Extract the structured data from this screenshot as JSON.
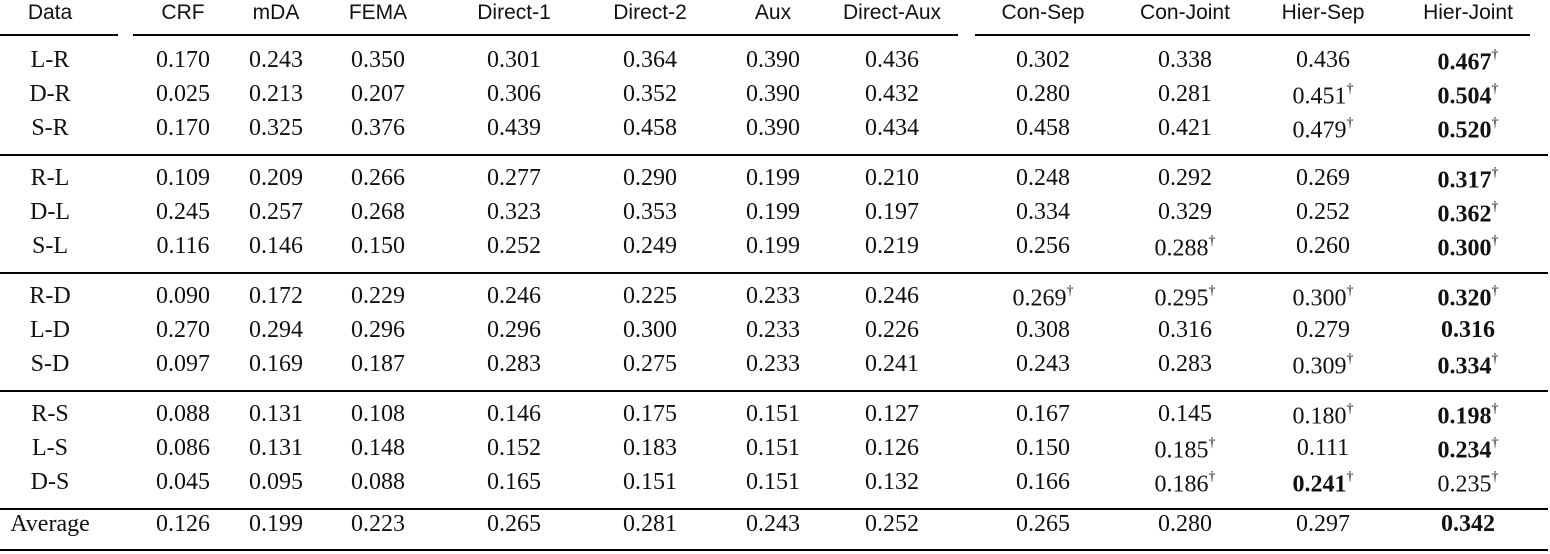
{
  "table": {
    "header": [
      "Data",
      "CRF",
      "mDA",
      "FEMA",
      "Direct-1",
      "Direct-2",
      "Aux",
      "Direct-Aux",
      "Con-Sep",
      "Con-Joint",
      "Hier-Sep",
      "Hier-Joint"
    ],
    "groups": [
      [
        {
          "label": "L-R",
          "cells": [
            "0.170",
            "0.243",
            "0.350",
            "0.301",
            "0.364",
            "0.390",
            "0.436",
            "0.302",
            "0.338",
            "0.436",
            {
              "text": "0.467",
              "mark": "†",
              "bold": true
            }
          ]
        },
        {
          "label": "D-R",
          "cells": [
            "0.025",
            "0.213",
            "0.207",
            "0.306",
            "0.352",
            "0.390",
            "0.432",
            "0.280",
            "0.281",
            {
              "text": "0.451",
              "mark": "†"
            },
            {
              "text": "0.504",
              "mark": "†",
              "bold": true
            }
          ]
        },
        {
          "label": "S-R",
          "cells": [
            "0.170",
            "0.325",
            "0.376",
            "0.439",
            "0.458",
            "0.390",
            "0.434",
            "0.458",
            "0.421",
            {
              "text": "0.479",
              "mark": "†"
            },
            {
              "text": "0.520",
              "mark": "†",
              "bold": true
            }
          ]
        }
      ],
      [
        {
          "label": "R-L",
          "cells": [
            "0.109",
            "0.209",
            "0.266",
            "0.277",
            "0.290",
            "0.199",
            "0.210",
            "0.248",
            "0.292",
            "0.269",
            {
              "text": "0.317",
              "mark": "†",
              "bold": true
            }
          ]
        },
        {
          "label": "D-L",
          "cells": [
            "0.245",
            "0.257",
            "0.268",
            "0.323",
            "0.353",
            "0.199",
            "0.197",
            "0.334",
            "0.329",
            "0.252",
            {
              "text": "0.362",
              "mark": "†",
              "bold": true
            }
          ]
        },
        {
          "label": "S-L",
          "cells": [
            "0.116",
            "0.146",
            "0.150",
            "0.252",
            "0.249",
            "0.199",
            "0.219",
            "0.256",
            {
              "text": "0.288",
              "mark": "†"
            },
            "0.260",
            {
              "text": "0.300",
              "mark": "†",
              "bold": true
            }
          ]
        }
      ],
      [
        {
          "label": "R-D",
          "cells": [
            "0.090",
            "0.172",
            "0.229",
            "0.246",
            "0.225",
            "0.233",
            "0.246",
            {
              "text": "0.269",
              "mark": "†"
            },
            {
              "text": "0.295",
              "mark": "†"
            },
            {
              "text": "0.300",
              "mark": "†"
            },
            {
              "text": "0.320",
              "mark": "†",
              "bold": true
            }
          ]
        },
        {
          "label": "L-D",
          "cells": [
            "0.270",
            "0.294",
            "0.296",
            "0.296",
            "0.300",
            "0.233",
            "0.226",
            "0.308",
            "0.316",
            "0.279",
            {
              "text": "0.316",
              "bold": true
            }
          ]
        },
        {
          "label": "S-D",
          "cells": [
            "0.097",
            "0.169",
            "0.187",
            "0.283",
            "0.275",
            "0.233",
            "0.241",
            "0.243",
            "0.283",
            {
              "text": "0.309",
              "mark": "†"
            },
            {
              "text": "0.334",
              "mark": "†",
              "bold": true
            }
          ]
        }
      ],
      [
        {
          "label": "R-S",
          "cells": [
            "0.088",
            "0.131",
            "0.108",
            "0.146",
            "0.175",
            "0.151",
            "0.127",
            "0.167",
            "0.145",
            {
              "text": "0.180",
              "mark": "†"
            },
            {
              "text": "0.198",
              "mark": "†",
              "bold": true
            }
          ]
        },
        {
          "label": "L-S",
          "cells": [
            "0.086",
            "0.131",
            "0.148",
            "0.152",
            "0.183",
            "0.151",
            "0.126",
            "0.150",
            {
              "text": "0.185",
              "mark": "†"
            },
            "0.111",
            {
              "text": "0.234",
              "mark": "†",
              "bold": true
            }
          ]
        },
        {
          "label": "D-S",
          "cells": [
            "0.045",
            "0.095",
            "0.088",
            "0.165",
            "0.151",
            "0.151",
            "0.132",
            "0.166",
            {
              "text": "0.186",
              "mark": "†"
            },
            {
              "text": "0.241",
              "mark": "†",
              "bold": true
            },
            {
              "text": "0.235",
              "mark": "†"
            }
          ]
        }
      ]
    ],
    "footer": {
      "label": "Average",
      "cells": [
        "0.126",
        "0.199",
        "0.223",
        "0.265",
        "0.281",
        "0.243",
        "0.252",
        "0.265",
        "0.280",
        "0.297",
        {
          "text": "0.342",
          "bold": true
        }
      ]
    }
  }
}
